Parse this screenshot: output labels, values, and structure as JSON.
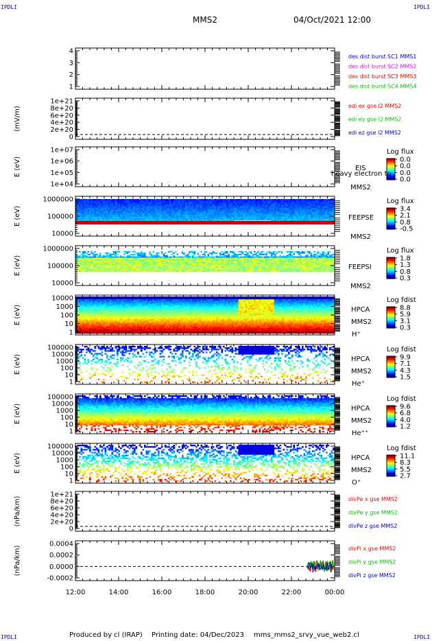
{
  "corner_marks": {
    "top_left": "IPDLI",
    "top_right": "IPDLI",
    "bottom_left": "IPDLI",
    "bottom_right": "IPDLI"
  },
  "header": {
    "spacecraft": "MMS2",
    "datetime": "04/Oct/2021 12:00"
  },
  "footer": {
    "produced_by": "Produced by cl (IRAP)",
    "printing_date": "Printing date: 04/Dec/2023",
    "filename": "mms_mms2_srvy_vue_web2.cl"
  },
  "colors": {
    "red": "#e00000",
    "green": "#00c000",
    "blue": "#0000c0",
    "magenta": "#e000e0"
  },
  "chart_data": [
    {
      "type": "line",
      "ylabel": "",
      "ticks": [
        "4",
        "3",
        "2",
        "1"
      ],
      "legend": [
        {
          "label": "des dist burst SC1 MMS1",
          "color": "#0000c0"
        },
        {
          "label": "des dist burst SC2 MMS2",
          "color": "#e000e0"
        },
        {
          "label": "des dist burst SC3 MMS3",
          "color": "#e00000"
        },
        {
          "label": "des dist burst SC4 MMS4",
          "color": "#00c000"
        }
      ]
    },
    {
      "type": "line",
      "ylabel": "(mV/m)",
      "ticks": [
        "1e+21",
        "8e+20",
        "6e+20",
        "4e+20",
        "2e+20",
        "0"
      ],
      "legend": [
        {
          "label": "edi ex gse l2 MMS2",
          "color": "#e00000"
        },
        {
          "label": "edi ey gse l2 MMS2",
          "color": "#00c000"
        },
        {
          "label": "edi ez gse l2 MMS2",
          "color": "#0000c0"
        }
      ]
    },
    {
      "type": "heatmap",
      "ylabel": "E (eV)",
      "ticks": [
        "1e+07",
        "1e+06",
        "1e+05",
        "1e+04"
      ],
      "labels": [
        "EIS",
        "MMS2"
      ],
      "overlay": "heavy electron to",
      "cbar_title": "Log flux",
      "cbar_ticks": [
        "0.0",
        "0.0",
        "0.0",
        "0.0"
      ]
    },
    {
      "type": "heatmap",
      "ylabel": "E (eV)",
      "ticks": [
        "1000000",
        "100000",
        "10000"
      ],
      "labels": [
        "FEEPSE",
        "MMS2"
      ],
      "cbar_title": "Log flux",
      "cbar_ticks": [
        "3.4",
        "2.1",
        "0.8",
        "-0.5"
      ]
    },
    {
      "type": "heatmap",
      "ylabel": "E (eV)",
      "ticks": [
        "1000000",
        "100000",
        "10000"
      ],
      "labels": [
        "FEEPSI",
        "MMS2"
      ],
      "cbar_title": "Log flux",
      "cbar_ticks": [
        "1.8",
        "1.3",
        "0.8",
        "0.3"
      ]
    },
    {
      "type": "heatmap",
      "ylabel": "E (eV)",
      "ticks": [
        "10000",
        "1000",
        "100",
        "10",
        "1"
      ],
      "labels": [
        "HPCA",
        "MMS2",
        "H⁺"
      ],
      "cbar_title": "Log fdist",
      "cbar_ticks": [
        "8.8",
        "5.9",
        "3.1",
        "0.3"
      ]
    },
    {
      "type": "heatmap",
      "ylabel": "E (eV)",
      "ticks": [
        "100000",
        "10000",
        "1000",
        "100",
        "10",
        "1"
      ],
      "labels": [
        "HPCA",
        "MMS2",
        "He⁺"
      ],
      "cbar_title": "Log fdist",
      "cbar_ticks": [
        "9.9",
        "7.1",
        "4.3",
        "1.5"
      ]
    },
    {
      "type": "heatmap",
      "ylabel": "E (eV)",
      "ticks": [
        "100000",
        "10000",
        "1000",
        "100",
        "10",
        "1"
      ],
      "labels": [
        "HPCA",
        "MMS2",
        "He⁺⁺"
      ],
      "cbar_title": "Log fdist",
      "cbar_ticks": [
        "9.6",
        "6.8",
        "4.0",
        "1.2"
      ]
    },
    {
      "type": "heatmap",
      "ylabel": "E (eV)",
      "ticks": [
        "100000",
        "10000",
        "1000",
        "100",
        "10",
        "1"
      ],
      "labels": [
        "HPCA",
        "MMS2",
        "O⁺"
      ],
      "cbar_title": "Log fdist",
      "cbar_ticks": [
        "11.1",
        "8.3",
        "5.5",
        "2.7"
      ]
    },
    {
      "type": "line",
      "ylabel": "(nPa/km)",
      "ticks": [
        "1e+21",
        "8e+20",
        "6e+20",
        "4e+20",
        "2e+20",
        "0"
      ],
      "legend": [
        {
          "label": "divPe x gse MMS2",
          "color": "#e00000"
        },
        {
          "label": "divPe y gse MMS2",
          "color": "#00c000"
        },
        {
          "label": "divPe z gse MMS2",
          "color": "#0000c0"
        }
      ]
    },
    {
      "type": "line",
      "ylabel": "(nPa/km)",
      "ticks": [
        "0.0004",
        "0.0002",
        "0.0000",
        "-0.0002"
      ],
      "legend": [
        {
          "label": "divPi x gse MMS2",
          "color": "#e00000"
        },
        {
          "label": "divPi y gse MMS2",
          "color": "#00c000"
        },
        {
          "label": "divPi z gse MMS2",
          "color": "#0000c0"
        }
      ]
    }
  ],
  "x_ticks": [
    "12:00",
    "14:00",
    "16:00",
    "18:00",
    "20:00",
    "22:00",
    "00:00"
  ]
}
